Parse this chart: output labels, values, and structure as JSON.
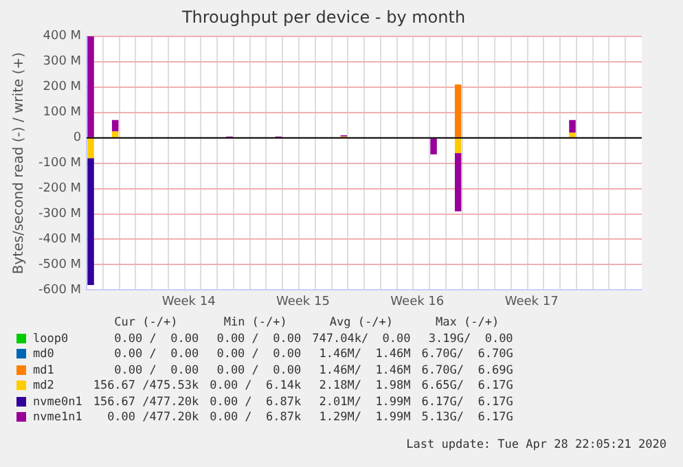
{
  "chart_data": {
    "type": "bar",
    "stacked": true,
    "title": "Throughput per device - by month",
    "ylabel": "Bytes/second read (-) / write (+)",
    "categories": [
      null,
      null,
      null,
      null,
      null,
      null,
      null,
      null,
      null,
      null,
      null,
      null,
      "Week 14",
      null,
      null,
      null,
      null,
      null,
      null,
      null,
      null,
      null,
      null,
      null,
      null,
      null,
      "Week 15",
      null,
      null,
      null,
      null,
      null,
      null,
      null,
      null,
      null,
      null,
      null,
      null,
      null,
      "Week 16",
      null,
      null,
      null,
      null,
      null,
      null,
      null,
      null,
      null,
      null,
      null,
      null,
      null,
      "Week 17",
      null,
      null,
      null,
      null,
      null,
      null,
      null,
      null,
      null,
      null,
      null,
      null,
      null
    ],
    "series": [
      {
        "name": "loop0",
        "color": "#00cc00",
        "values": [
          null,
          null,
          null,
          null,
          null,
          null,
          null,
          null,
          null,
          null,
          null,
          null,
          null,
          null,
          null,
          null,
          null,
          null,
          null,
          null,
          null,
          null,
          null,
          null,
          null,
          null,
          null,
          null,
          null,
          null,
          null,
          null,
          null,
          null,
          null,
          null,
          null,
          null,
          null,
          null,
          null,
          null,
          null,
          null,
          null,
          null,
          null,
          null,
          null,
          null,
          null,
          null,
          null,
          null,
          null,
          null,
          null,
          null,
          null,
          null,
          null,
          null,
          null,
          null,
          null,
          null,
          null,
          null
        ]
      },
      {
        "name": "md0",
        "color": "#0066b3",
        "values": [
          null,
          null,
          null,
          null,
          null,
          null,
          null,
          null,
          null,
          null,
          null,
          null,
          null,
          null,
          null,
          null,
          null,
          null,
          null,
          null,
          null,
          null,
          null,
          null,
          null,
          null,
          null,
          null,
          null,
          null,
          null,
          null,
          null,
          null,
          null,
          null,
          null,
          null,
          null,
          null,
          null,
          null,
          null,
          null,
          null,
          null,
          null,
          null,
          null,
          null,
          null,
          null,
          null,
          null,
          null,
          null,
          null,
          null,
          null,
          null,
          null,
          null,
          null,
          null,
          null,
          null,
          null,
          null
        ]
      },
      {
        "name": "md1",
        "color": "#ff8000",
        "values": [
          null,
          null,
          null,
          null,
          null,
          null,
          null,
          null,
          null,
          null,
          null,
          null,
          null,
          null,
          null,
          null,
          null,
          null,
          null,
          null,
          null,
          null,
          null,
          null,
          null,
          null,
          null,
          null,
          null,
          null,
          null,
          null,
          null,
          null,
          null,
          null,
          null,
          null,
          null,
          null,
          null,
          null,
          null,
          null,
          null,
          210,
          null,
          null,
          null,
          null,
          null,
          null,
          null,
          null,
          null,
          null,
          null,
          null,
          null,
          null,
          null,
          null,
          null,
          null,
          null,
          null,
          null,
          null
        ]
      },
      {
        "name": "md2",
        "color": "#ffcc00",
        "values": [
          -80,
          null,
          null,
          25,
          null,
          null,
          null,
          null,
          null,
          null,
          null,
          null,
          null,
          null,
          null,
          null,
          null,
          null,
          null,
          null,
          null,
          null,
          null,
          null,
          null,
          null,
          null,
          null,
          null,
          null,
          null,
          5,
          null,
          null,
          null,
          null,
          null,
          null,
          null,
          null,
          null,
          null,
          null,
          null,
          null,
          -60,
          null,
          null,
          null,
          null,
          null,
          null,
          null,
          null,
          null,
          null,
          null,
          null,
          null,
          20,
          null,
          null,
          null,
          null,
          null,
          null,
          null,
          null
        ]
      },
      {
        "name": "nvme0n1",
        "color": "#330099",
        "values": [
          -500,
          null,
          null,
          null,
          null,
          null,
          null,
          null,
          null,
          null,
          null,
          null,
          null,
          null,
          null,
          null,
          null,
          null,
          null,
          null,
          null,
          null,
          null,
          null,
          null,
          null,
          null,
          null,
          null,
          null,
          null,
          null,
          null,
          null,
          null,
          null,
          null,
          null,
          null,
          null,
          null,
          null,
          null,
          null,
          null,
          null,
          null,
          null,
          null,
          null,
          null,
          null,
          null,
          null,
          null,
          null,
          null,
          null,
          null,
          null,
          null,
          null,
          null,
          null,
          null,
          null,
          null,
          null
        ]
      },
      {
        "name": "nvme1n1",
        "color": "#990099",
        "values": [
          400,
          null,
          null,
          45,
          null,
          null,
          null,
          null,
          null,
          null,
          null,
          null,
          null,
          null,
          null,
          null,
          null,
          5,
          null,
          null,
          null,
          null,
          null,
          5,
          null,
          null,
          null,
          null,
          null,
          null,
          null,
          5,
          null,
          null,
          null,
          null,
          null,
          null,
          null,
          null,
          null,
          null,
          -65,
          null,
          null,
          -230,
          null,
          null,
          null,
          null,
          null,
          null,
          null,
          null,
          null,
          null,
          null,
          null,
          null,
          50,
          null,
          null,
          null,
          null,
          null,
          null,
          null,
          null
        ]
      }
    ],
    "ylim": [
      -600,
      400
    ],
    "yticks": [
      {
        "value": -600,
        "label": "-600 M"
      },
      {
        "value": -500,
        "label": "-500 M"
      },
      {
        "value": -400,
        "label": "-400 M"
      },
      {
        "value": -300,
        "label": "-300 M"
      },
      {
        "value": -200,
        "label": "-200 M"
      },
      {
        "value": -100,
        "label": "-100 M"
      },
      0,
      {
        "value": 100,
        "label": "100 M"
      },
      {
        "value": 200,
        "label": "200 M"
      },
      {
        "value": 300,
        "label": "300 M"
      },
      {
        "value": 400,
        "label": "400 M"
      }
    ],
    "ref_lines": [
      {
        "axis": "y",
        "value": 0,
        "color": "#000000"
      }
    ],
    "grid": true,
    "legend": "bottom",
    "annotations": [
      "Cur (-/+)",
      "Min (-/+)",
      "Avg (-/+)",
      "Max (-/+)",
      "0.00 /  0.00",
      "0.00 /  0.00",
      "747.04k/  0.00",
      "3.19G/  0.00",
      "0.00 /  0.00",
      "0.00 /  0.00",
      "1.46M/  1.46M",
      "6.70G/  6.70G",
      "0.00 /  0.00",
      "0.00 /  0.00",
      "1.46M/  1.46M",
      "6.70G/  6.69G",
      "156.67 /475.53k",
      "0.00 /  6.14k",
      "2.18M/  1.98M",
      "6.65G/  6.17G",
      "156.67 /477.20k",
      "0.00 /  6.87k",
      "2.01M/  1.99M",
      "6.17G/  6.17G",
      "0.00 /477.20k",
      "0.00 /  6.87k",
      "1.29M/  1.99M",
      "5.13G/  6.17G",
      "Last update: Tue Apr 28 22:05:21 2020"
    ]
  }
}
